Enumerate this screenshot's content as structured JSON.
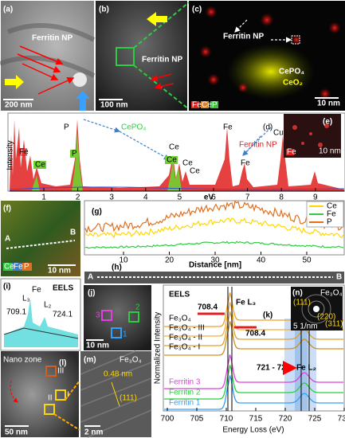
{
  "panels": {
    "a": {
      "label": "(a)",
      "ferritin": "Ferritin NP",
      "scale": "200 nm"
    },
    "b": {
      "label": "(b)",
      "ferritin": "Ferritin NP",
      "scale": "100 nm"
    },
    "c": {
      "label": "(c)",
      "ferritin": "Ferritin NP",
      "cepo4": "CePO₄",
      "ceo2": "CeO₂",
      "scale": "10 nm",
      "legend": [
        "Fe",
        "Ce",
        "P"
      ]
    },
    "d": {
      "label": "(d)",
      "ylabel": "Intensity",
      "xlabel": "eV",
      "xticks": [
        "1",
        "2",
        "3",
        "4",
        "5",
        "6",
        "7",
        "8",
        "9"
      ],
      "peaks": {
        "fe_low": "Fe",
        "ce_box": "Ce",
        "p_box": "P",
        "p": "P",
        "cepo4": "CePO₄",
        "ce1": "Ce",
        "ce2": "Ce",
        "ce3": "Ce",
        "ce4": "Ce",
        "fe1": "Fe",
        "fe2": "Fe",
        "ferritin": "Ferritin NP",
        "cu": "Cu"
      }
    },
    "e": {
      "label": "(e)",
      "scale": "10 nm",
      "legend": "Fe"
    },
    "f": {
      "label": "(f)",
      "a": "A",
      "b": "B",
      "scale": "10 nm",
      "legend": [
        "Ce",
        "Fe",
        "P"
      ]
    },
    "g": {
      "label": "(g)",
      "xlabel": "Distance [nm]",
      "xticks": [
        "10",
        "20",
        "30",
        "40",
        "50"
      ],
      "legend": [
        "Ce",
        "Fe",
        "P"
      ]
    },
    "h": {
      "label": "(h)",
      "a": "A",
      "b": "B"
    },
    "i": {
      "label": "(i)",
      "eels": "EELS",
      "fe": "Fe",
      "l3": "L₃",
      "l2": "L₂",
      "v1": "709.1",
      "v2": "724.1"
    },
    "j": {
      "label": "(j)",
      "n1": "1",
      "n2": "2",
      "n3": "3",
      "scale": "10 nm"
    },
    "k": {
      "label": "(k)",
      "eels": "EELS",
      "fel3": "Fe L₃",
      "fel2": "Fe L₂",
      "e1": "708.4",
      "e2": "708.4",
      "range": "721 - 726",
      "curves": [
        "Fe₃O₄",
        "Fe₃O₄ - III",
        "Fe₃O₄ - II",
        "Fe₃O₄ - I",
        "Ferritin 3",
        "Ferritin 2",
        "Ferritin 1"
      ],
      "ylabel": "Normalized Intensity",
      "xlabel": "Energy Loss (eV)",
      "xticks": [
        "700",
        "705",
        "710",
        "715",
        "720",
        "725",
        "730"
      ]
    },
    "n": {
      "label": "(n)",
      "title": "Fe₃O₄",
      "r111": "(111)",
      "r220": "(220)",
      "r311": "(311)",
      "scale": "5 1/nm"
    },
    "l": {
      "label": "(l)",
      "nano": "Nano zone",
      "r3": "III",
      "r2": "II",
      "r1": "I",
      "scale": "50 nm"
    },
    "m": {
      "label": "(m)",
      "title": "Fe₃O₄",
      "d": "0.48 nm",
      "hkl": "(111)",
      "scale": "2 nm"
    }
  }
}
